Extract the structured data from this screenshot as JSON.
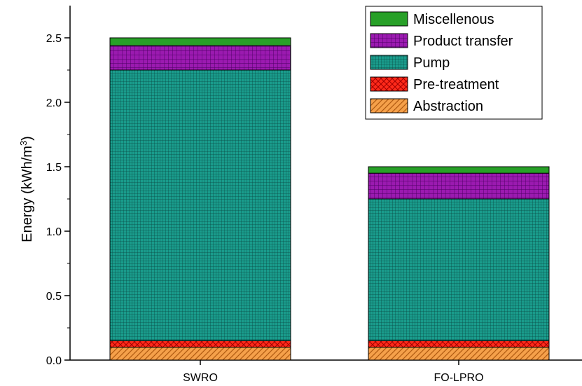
{
  "chart_data": {
    "type": "bar",
    "stacked": true,
    "categories": [
      "SWRO",
      "FO-LPRO"
    ],
    "series": [
      {
        "name": "Abstraction",
        "values": [
          0.1,
          0.1
        ],
        "color": "#f5a04a",
        "pattern": "diagonal-hatch"
      },
      {
        "name": "Pre-treatment",
        "values": [
          0.05,
          0.05
        ],
        "color": "#ff2a1a",
        "pattern": "cross-hatch"
      },
      {
        "name": "Pump",
        "values": [
          2.1,
          1.1
        ],
        "color": "#1a9c8c",
        "pattern": "grid"
      },
      {
        "name": "Product transfer",
        "values": [
          0.19,
          0.2
        ],
        "color": "#9b1ab0",
        "pattern": "grid"
      },
      {
        "name": "Miscellenous",
        "values": [
          0.06,
          0.05
        ],
        "color": "#28a028",
        "pattern": "solid"
      }
    ],
    "title": "",
    "xlabel": "",
    "ylabel_prefix": "Energy (kWh/m",
    "ylabel_superscript": "3",
    "ylabel_suffix": ")",
    "ylim": [
      0,
      2.75
    ],
    "yticks": [
      "0.0",
      "0.5",
      "1.0",
      "1.5",
      "2.0",
      "2.5"
    ],
    "ytick_values": [
      0,
      0.5,
      1.0,
      1.5,
      2.0,
      2.5
    ],
    "grid": false,
    "legend_position": "top-right"
  }
}
